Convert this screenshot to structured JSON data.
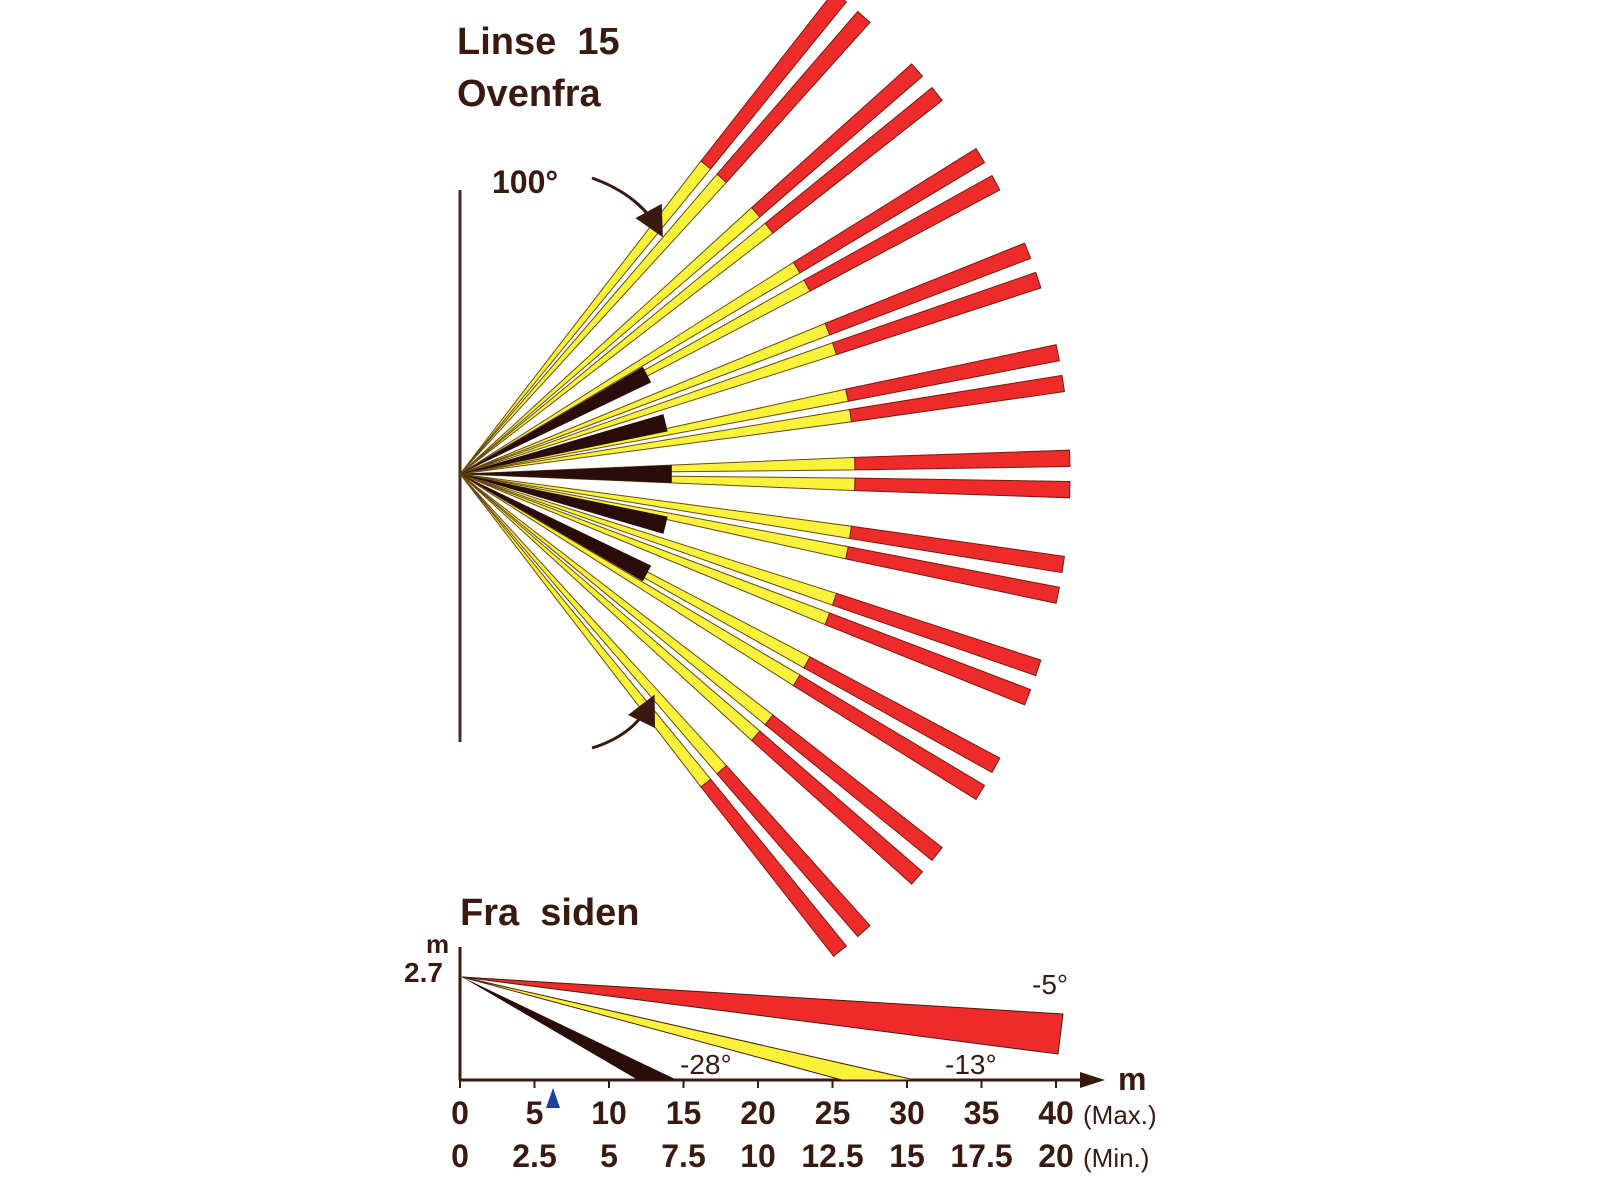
{
  "top_view": {
    "title_line1": "Linse  15",
    "title_line2": "Ovenfra",
    "coverage_angle_label": "100°",
    "coverage_angle_deg": 100,
    "beam_count": 11,
    "beam_colors": {
      "near": "#2a0d0a",
      "mid": "#f8f23a",
      "far": "#ee2b2b"
    },
    "short_beam_angles_deg": [
      -28,
      -14,
      0,
      14,
      28
    ]
  },
  "side_view": {
    "title": "Fra  siden",
    "y_unit": "m",
    "mount_height_label": "2.7",
    "x_unit": "m",
    "max_label": "(Max.)",
    "min_label": "(Min.)",
    "max_ticks": [
      "0",
      "5",
      "10",
      "15",
      "20",
      "25",
      "30",
      "35",
      "40"
    ],
    "min_ticks": [
      "0",
      "2.5",
      "5",
      "7.5",
      "10",
      "12.5",
      "15",
      "17.5",
      "20"
    ],
    "beams": [
      {
        "angle_label": "-5°",
        "color": "#ee2b2b"
      },
      {
        "angle_label": "-13°",
        "color": "#f8f23a"
      },
      {
        "angle_label": "-28°",
        "color": "#2a0d0a"
      }
    ],
    "marker_color": "#1f3fa8"
  }
}
